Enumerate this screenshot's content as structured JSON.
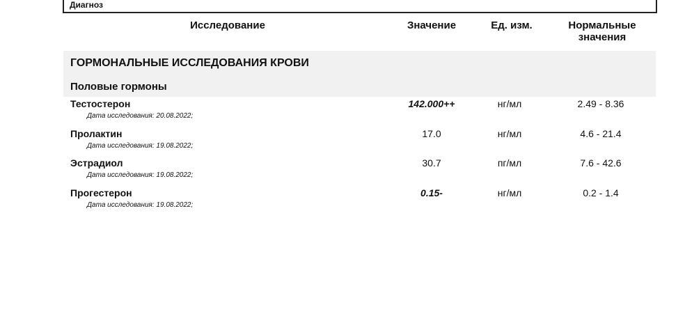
{
  "diagnosis_label": "Диагноз",
  "headers": {
    "test": "Исследование",
    "value": "Значение",
    "unit": "Ед. изм.",
    "normal_line1": "Нормальные",
    "normal_line2": "значения"
  },
  "section": "ГОРМОНАЛЬНЫЕ ИССЛЕДОВАНИЯ КРОВИ",
  "subsection": "Половые гормоны",
  "rows": [
    {
      "name": "Тестостерон",
      "date": "Дата исследования: 20.08.2022;",
      "value": "142.000++",
      "unit": "нг/мл",
      "normal": "2.49 - 8.36",
      "flagged": true
    },
    {
      "name": "Пролактин",
      "date": "Дата исследования: 19.08.2022;",
      "value": "17.0",
      "unit": "нг/мл",
      "normal": "4.6 - 21.4",
      "flagged": false
    },
    {
      "name": "Эстрадиол",
      "date": "Дата исследования: 19.08.2022;",
      "value": "30.7",
      "unit": "пг/мл",
      "normal": "7.6 - 42.6",
      "flagged": false
    },
    {
      "name": "Прогестерон",
      "date": "Дата исследования: 19.08.2022;",
      "value": "0.15-",
      "unit": "нг/мл",
      "normal": "0.2 - 1.4",
      "flagged": true
    }
  ]
}
